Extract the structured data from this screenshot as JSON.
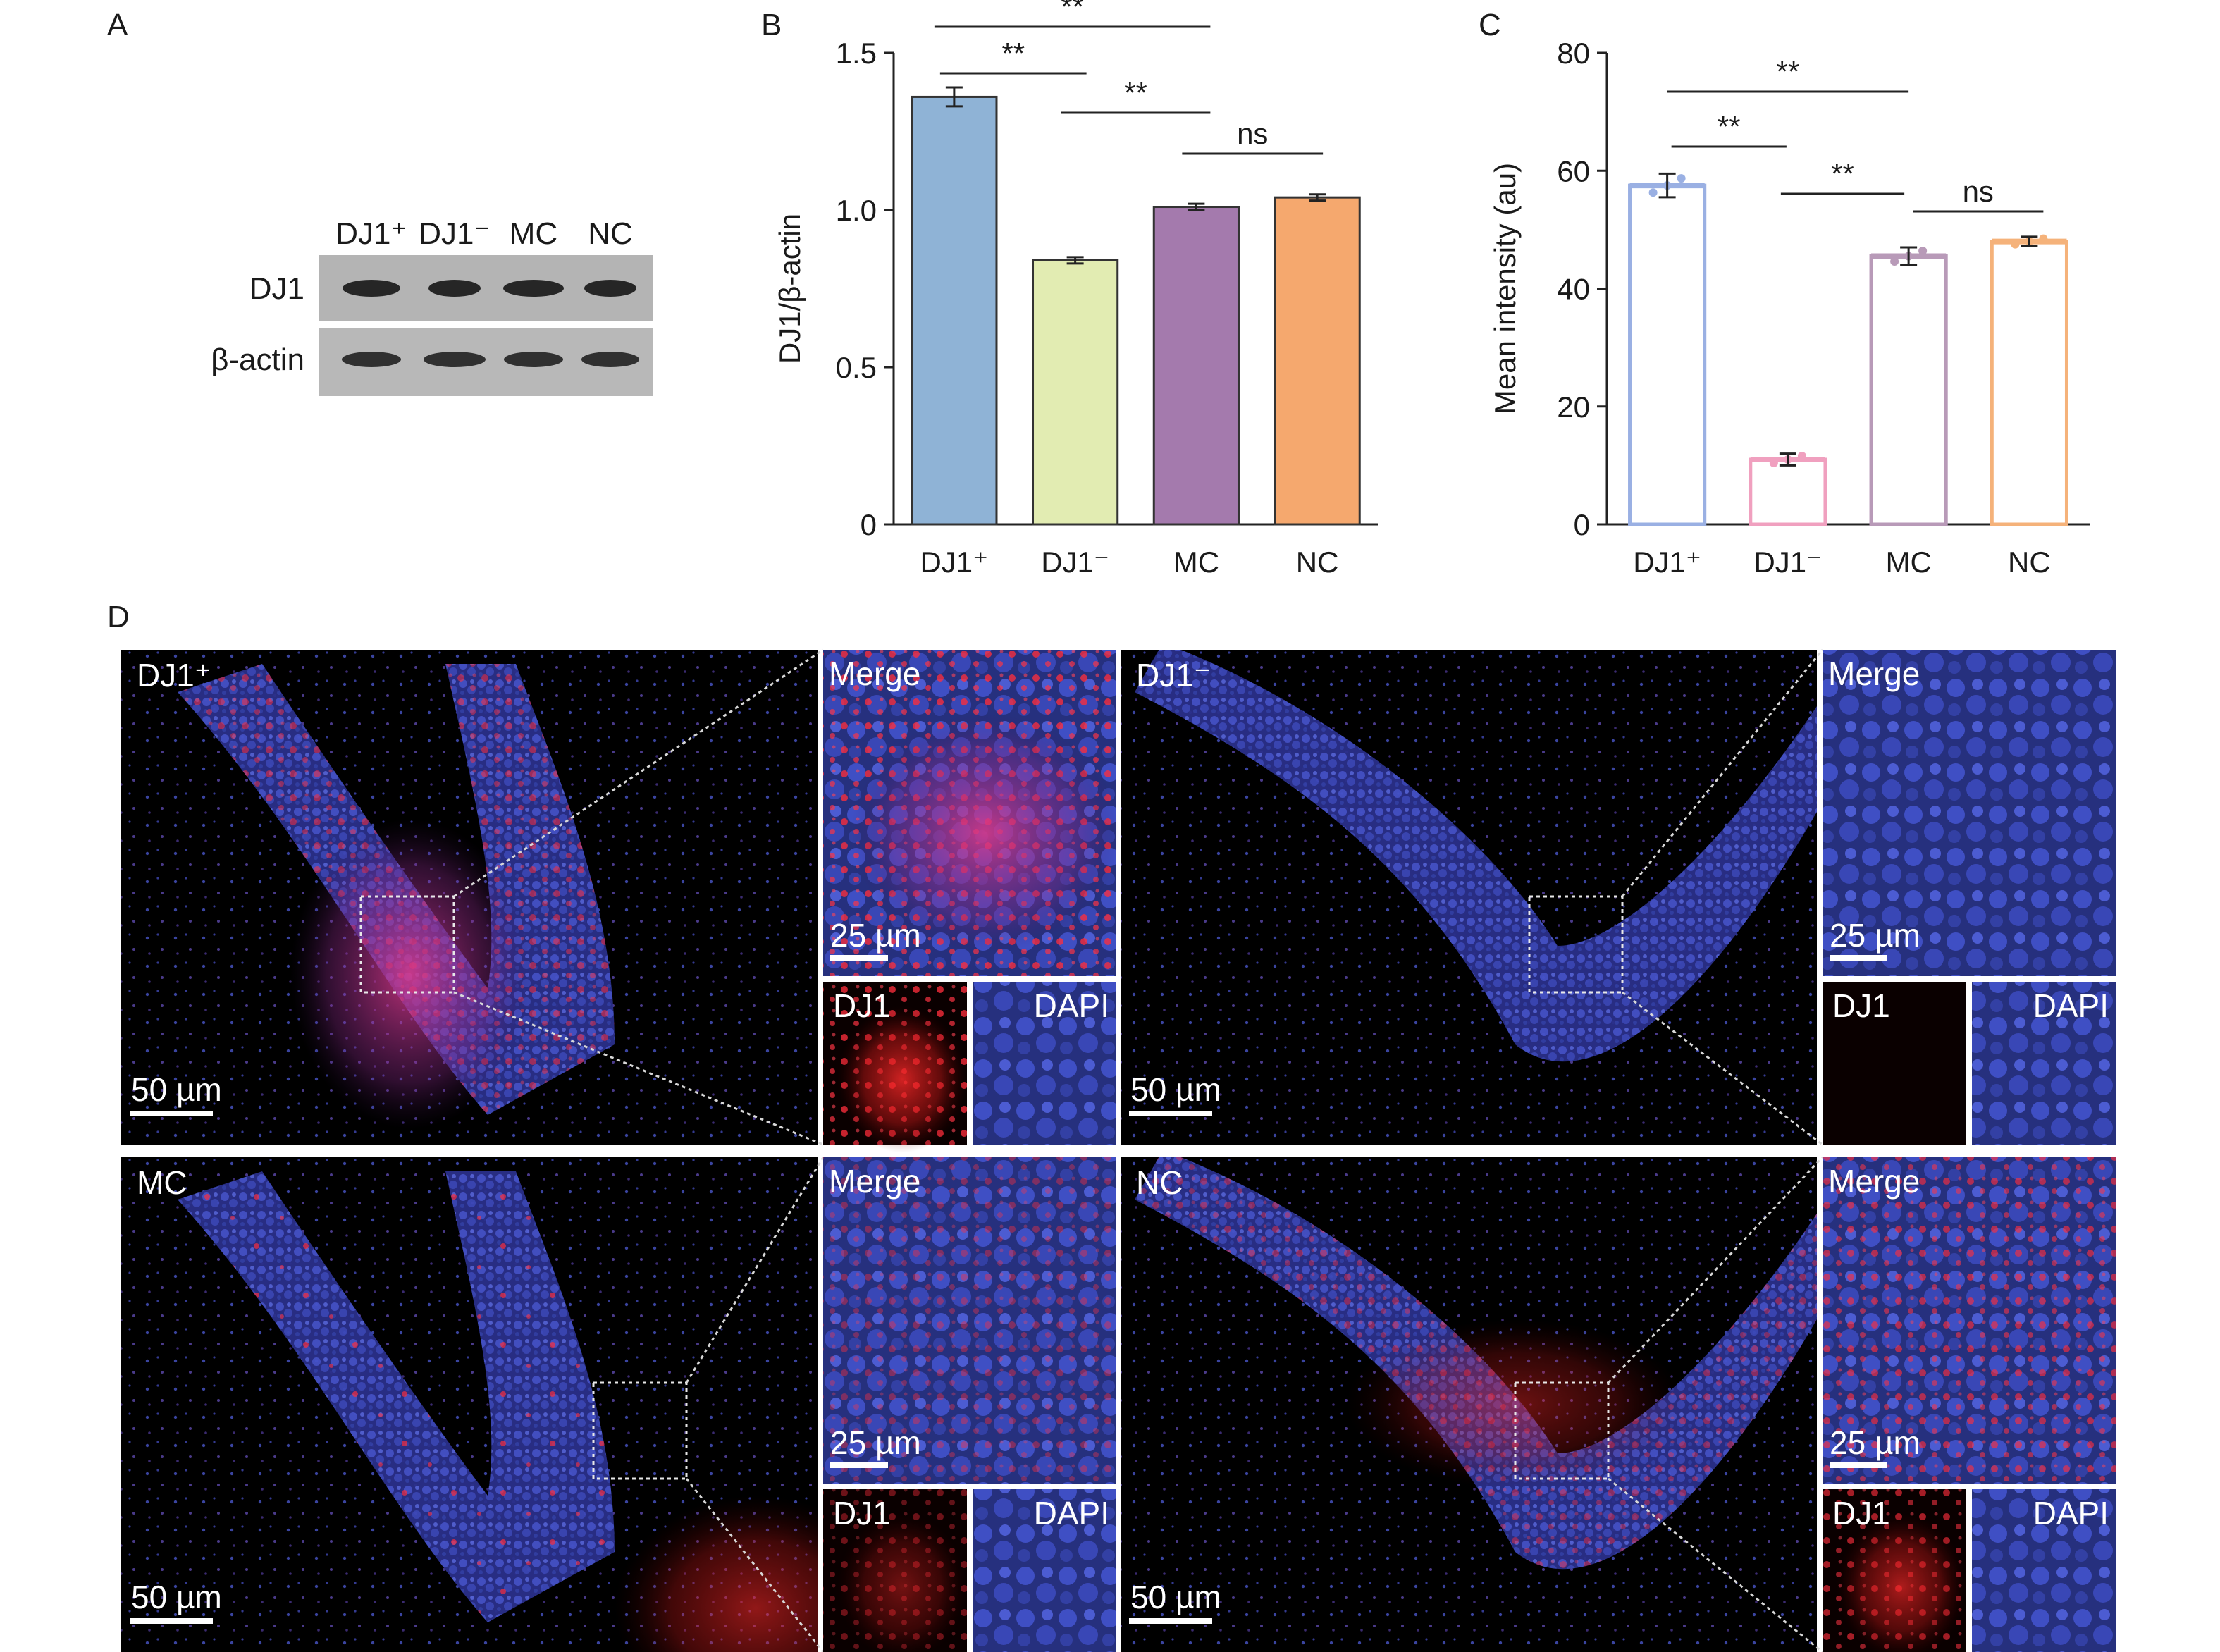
{
  "panels": {
    "a": "A",
    "b": "B",
    "c": "C",
    "d": "D"
  },
  "western_blot": {
    "lanes": [
      "DJ1⁺",
      "DJ1⁻",
      "MC",
      "NC"
    ],
    "rows": [
      "DJ1",
      "β-actin"
    ]
  },
  "chart_data": [
    {
      "type": "bar",
      "panel": "B",
      "categories": [
        "DJ1⁺",
        "DJ1⁻",
        "MC",
        "NC"
      ],
      "values": [
        1.36,
        0.84,
        1.01,
        1.04
      ],
      "errors": [
        0.03,
        0.01,
        0.01,
        0.01
      ],
      "colors": [
        "#8fb3d6",
        "#e2ecb2",
        "#a47aad",
        "#f5a86e"
      ],
      "ylabel": "DJ1/β-actin",
      "ylim": [
        0,
        1.5
      ],
      "yticks": [
        0,
        0.5,
        1.0,
        1.5
      ],
      "ytick_labels": [
        "0",
        "0.5",
        "1.0",
        "1.5"
      ],
      "comparisons": [
        {
          "from": 0,
          "to": 2,
          "label": "**"
        },
        {
          "from": 0,
          "to": 1,
          "label": "**"
        },
        {
          "from": 1,
          "to": 2,
          "label": "**"
        },
        {
          "from": 2,
          "to": 3,
          "label": "ns"
        }
      ]
    },
    {
      "type": "bar",
      "panel": "C",
      "categories": [
        "DJ1⁺",
        "DJ1⁻",
        "MC",
        "NC"
      ],
      "values": [
        57.5,
        11.0,
        45.5,
        48.0
      ],
      "errors": [
        2.0,
        1.0,
        1.5,
        0.8
      ],
      "colors": [
        "#9ab0e3",
        "#f0a0bf",
        "#b89ab8",
        "#f5b27a"
      ],
      "ylabel": "Mean intensity (au)",
      "ylim": [
        0,
        80
      ],
      "yticks": [
        0,
        20,
        40,
        60,
        80
      ],
      "ytick_labels": [
        "0",
        "20",
        "40",
        "60",
        "80"
      ],
      "comparisons": [
        {
          "from": 0,
          "to": 2,
          "label": "**"
        },
        {
          "from": 0,
          "to": 1,
          "label": "**"
        },
        {
          "from": 1,
          "to": 2,
          "label": "**"
        },
        {
          "from": 2,
          "to": 3,
          "label": "ns"
        }
      ]
    }
  ],
  "micrographs": {
    "groups": [
      {
        "name": "DJ1⁺",
        "scale_main": "50 µm",
        "scale_inset": "25 µm",
        "red_level": 0.85
      },
      {
        "name": "DJ1⁻",
        "scale_main": "50 µm",
        "scale_inset": "25 µm",
        "red_level": 0.05
      },
      {
        "name": "MC",
        "scale_main": "50 µm",
        "scale_inset": "25 µm",
        "red_level": 0.45
      },
      {
        "name": "NC",
        "scale_main": "50 µm",
        "scale_inset": "25 µm",
        "red_level": 0.7
      }
    ],
    "merge_label": "Merge",
    "dj1_label": "DJ1",
    "dapi_label": "DAPI"
  }
}
